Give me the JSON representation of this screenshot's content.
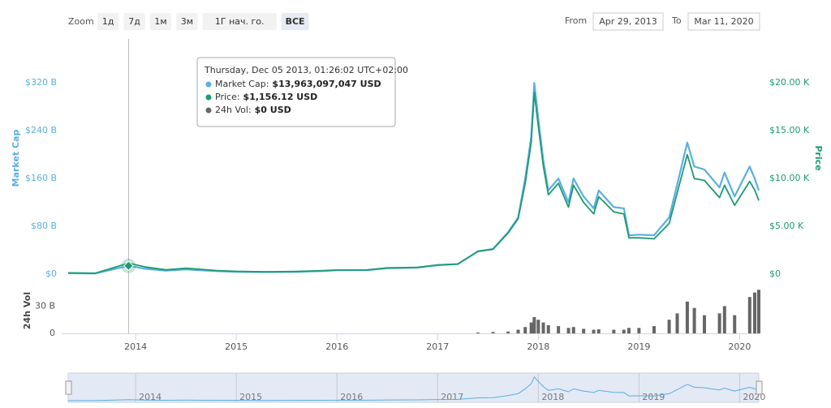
{
  "toolbar": {
    "zoom_label": "Zoom",
    "buttons": [
      "1д",
      "7д",
      "1м",
      "3м",
      "1Г нач. го.",
      "ВСЕ"
    ],
    "selected": "ВСЕ",
    "from_label": "From",
    "from": "Apr 29, 2013",
    "to_label": "To",
    "to": "Mar 11, 2020"
  },
  "tooltip": {
    "date": "Thursday, Dec 05 2013, 01:26:02 UTC+02:00",
    "rows": [
      {
        "name": "Market Cap:",
        "value": "$13,963,097,047 USD",
        "color": "#5aafe0"
      },
      {
        "name": "Price:",
        "value": "$1,156.12 USD",
        "color": "#1d9a73"
      },
      {
        "name": "24h Vol:",
        "value": "$0 USD",
        "color": "#666666"
      }
    ]
  },
  "chart_data": [
    {
      "type": "line",
      "ylabel": "Market Cap",
      "y2label": "Price",
      "x": [
        2013.33,
        2013.6,
        2013.93,
        2014.1,
        2014.3,
        2014.5,
        2014.8,
        2015.0,
        2015.3,
        2015.6,
        2015.85,
        2016.0,
        2016.3,
        2016.5,
        2016.8,
        2017.0,
        2017.2,
        2017.4,
        2017.55,
        2017.7,
        2017.8,
        2017.87,
        2017.93,
        2017.96,
        2018.0,
        2018.05,
        2018.1,
        2018.2,
        2018.3,
        2018.35,
        2018.45,
        2018.55,
        2018.6,
        2018.75,
        2018.85,
        2018.9,
        2019.0,
        2019.15,
        2019.3,
        2019.38,
        2019.48,
        2019.55,
        2019.65,
        2019.8,
        2019.85,
        2019.95,
        2020.1,
        2020.15,
        2020.19
      ],
      "series": [
        {
          "name": "Market Cap",
          "color": "#5aafe0",
          "values": [
            1.5,
            1.2,
            14,
            9,
            6,
            8,
            5,
            4,
            3.5,
            4,
            5,
            6.5,
            6.8,
            10,
            11,
            15,
            17,
            38,
            42,
            70,
            95,
            160,
            230,
            320,
            260,
            190,
            140,
            160,
            120,
            160,
            130,
            110,
            140,
            112,
            110,
            65,
            66,
            65,
            95,
            150,
            220,
            180,
            175,
            145,
            170,
            130,
            180,
            160,
            140
          ]
        },
        {
          "name": "Price",
          "color": "#1d9a73",
          "axis": "y2",
          "values": [
            135,
            100,
            1156,
            750,
            450,
            620,
            380,
            300,
            240,
            280,
            370,
            430,
            440,
            650,
            700,
            960,
            1050,
            2400,
            2600,
            4300,
            5800,
            9500,
            13800,
            19000,
            15500,
            11300,
            8300,
            9500,
            7000,
            9300,
            7500,
            6300,
            8100,
            6500,
            6300,
            3800,
            3800,
            3700,
            5300,
            8500,
            12500,
            10000,
            9800,
            8000,
            9300,
            7200,
            9700,
            8800,
            7700
          ]
        }
      ],
      "xlim": [
        2013.33,
        2020.19
      ],
      "xticks": [
        2014,
        2015,
        2016,
        2017,
        2018,
        2019,
        2020
      ],
      "ylim": [
        0,
        350
      ],
      "yticks": [
        {
          "value": 0,
          "label": "$0"
        },
        {
          "value": 80,
          "label": "$80 B"
        },
        {
          "value": 160,
          "label": "$160 B"
        },
        {
          "value": 240,
          "label": "$240 B"
        },
        {
          "value": 320,
          "label": "$320 B"
        }
      ],
      "y2lim": [
        0,
        21875
      ],
      "y2ticks": [
        {
          "value": 0,
          "label": "$0"
        },
        {
          "value": 5000,
          "label": "$5.00 K"
        },
        {
          "value": 10000,
          "label": "$10.00 K"
        },
        {
          "value": 15000,
          "label": "$15.00 K"
        },
        {
          "value": 20000,
          "label": "$20.00 K"
        }
      ]
    },
    {
      "type": "bar",
      "ylabel": "24h Vol",
      "color": "#666666",
      "x": [
        2013.33,
        2013.6,
        2013.93,
        2014.1,
        2014.3,
        2014.5,
        2014.8,
        2015.0,
        2015.3,
        2015.6,
        2015.85,
        2016.0,
        2016.3,
        2016.5,
        2016.8,
        2017.0,
        2017.2,
        2017.4,
        2017.55,
        2017.7,
        2017.8,
        2017.87,
        2017.93,
        2017.96,
        2018.0,
        2018.05,
        2018.1,
        2018.2,
        2018.3,
        2018.35,
        2018.45,
        2018.55,
        2018.6,
        2018.75,
        2018.85,
        2018.9,
        2019.0,
        2019.15,
        2019.3,
        2019.38,
        2019.48,
        2019.55,
        2019.65,
        2019.8,
        2019.85,
        2019.95,
        2020.1,
        2020.15,
        2020.19
      ],
      "values": [
        0,
        0,
        0,
        0,
        0,
        0,
        0,
        0,
        0,
        0,
        0,
        0,
        0,
        0,
        0,
        0,
        0,
        1,
        1.5,
        2,
        4,
        7,
        12,
        18,
        15,
        12,
        9,
        8,
        6,
        7,
        5,
        4,
        4.5,
        4,
        4,
        6,
        6,
        8,
        15,
        22,
        35,
        28,
        20,
        22,
        30,
        20,
        40,
        45,
        48
      ],
      "xlim": [
        2013.33,
        2020.19
      ],
      "ylim": [
        0,
        50
      ],
      "yticks": [
        0,
        {
          "value": 30,
          "label": "30 B"
        }
      ]
    }
  ]
}
